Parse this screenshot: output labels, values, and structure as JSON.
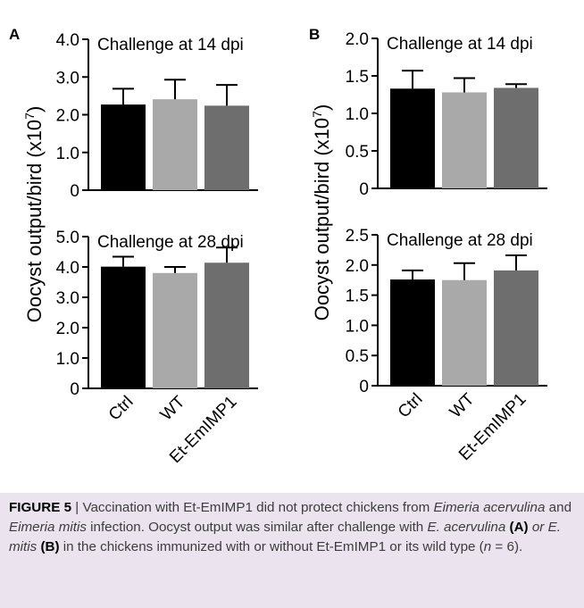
{
  "panels": {
    "a": {
      "letter": "A"
    },
    "b": {
      "letter": "B"
    }
  },
  "y_label": "Oocyst output/bird (x10",
  "y_label_exp": "7",
  "y_label_close": ")",
  "caption": {
    "fig_label": "FIGURE 5",
    "sep": " | ",
    "s1": "Vaccination with Et-EmIMP1 did not protect chickens from ",
    "sp1": "Eimeria acervulina",
    "s2": " and ",
    "sp2": "Eimeria mitis",
    "s3": " infection. Oocyst output was similar after challenge with ",
    "sp3": "E. acervulina",
    "p_a": "(A)",
    "s4": " or ",
    "sp4": "E. mitis",
    "p_b": "(B)",
    "s5": " in the chickens immunized with or without Et-EmIMP1 or its wild type (",
    "n": "n",
    "s6": " = 6)."
  },
  "colors": {
    "ctrl": "#000000",
    "wt": "#a9a9a9",
    "et": "#6e6e6e"
  },
  "chart_data": [
    {
      "type": "bar",
      "panel": "A",
      "title": "Challenge at 14 dpi",
      "categories": [
        "Ctrl",
        "WT",
        "Et-EmIMP1"
      ],
      "values": [
        2.27,
        2.41,
        2.24
      ],
      "errors": [
        0.42,
        0.52,
        0.55
      ],
      "ylim": [
        0,
        4.0
      ],
      "yticks": [
        "0",
        "1.0",
        "2.0",
        "3.0",
        "4.0"
      ],
      "ylabel": "Oocyst output/bird (x10^7)"
    },
    {
      "type": "bar",
      "panel": "B",
      "title": "Challenge at 14 dpi",
      "categories": [
        "Ctrl",
        "WT",
        "Et-EmIMP1"
      ],
      "values": [
        1.33,
        1.28,
        1.34
      ],
      "errors": [
        0.24,
        0.19,
        0.05
      ],
      "ylim": [
        0,
        2.0
      ],
      "yticks": [
        "0",
        "0.5",
        "1.0",
        "1.5",
        "2.0"
      ],
      "ylabel": "Oocyst output/bird (x10^7)"
    },
    {
      "type": "bar",
      "panel": "A",
      "title": "Challenge at 28 dpi",
      "categories": [
        "Ctrl",
        "WT",
        "Et-EmIMP1"
      ],
      "values": [
        4.01,
        3.8,
        4.14
      ],
      "errors": [
        0.33,
        0.2,
        0.5
      ],
      "ylim": [
        0,
        5.0
      ],
      "yticks": [
        "0",
        "1.0",
        "2.0",
        "3.0",
        "4.0",
        "5.0"
      ],
      "ylabel": "Oocyst output/bird (x10^7)"
    },
    {
      "type": "bar",
      "panel": "B",
      "title": "Challenge at 28 dpi",
      "categories": [
        "Ctrl",
        "WT",
        "Et-EmIMP1"
      ],
      "values": [
        1.76,
        1.75,
        1.91
      ],
      "errors": [
        0.15,
        0.28,
        0.25
      ],
      "ylim": [
        0,
        2.5
      ],
      "yticks": [
        "0",
        "0.5",
        "1.0",
        "1.5",
        "2.0",
        "2.5"
      ],
      "ylabel": "Oocyst output/bird (x10^7)"
    }
  ]
}
